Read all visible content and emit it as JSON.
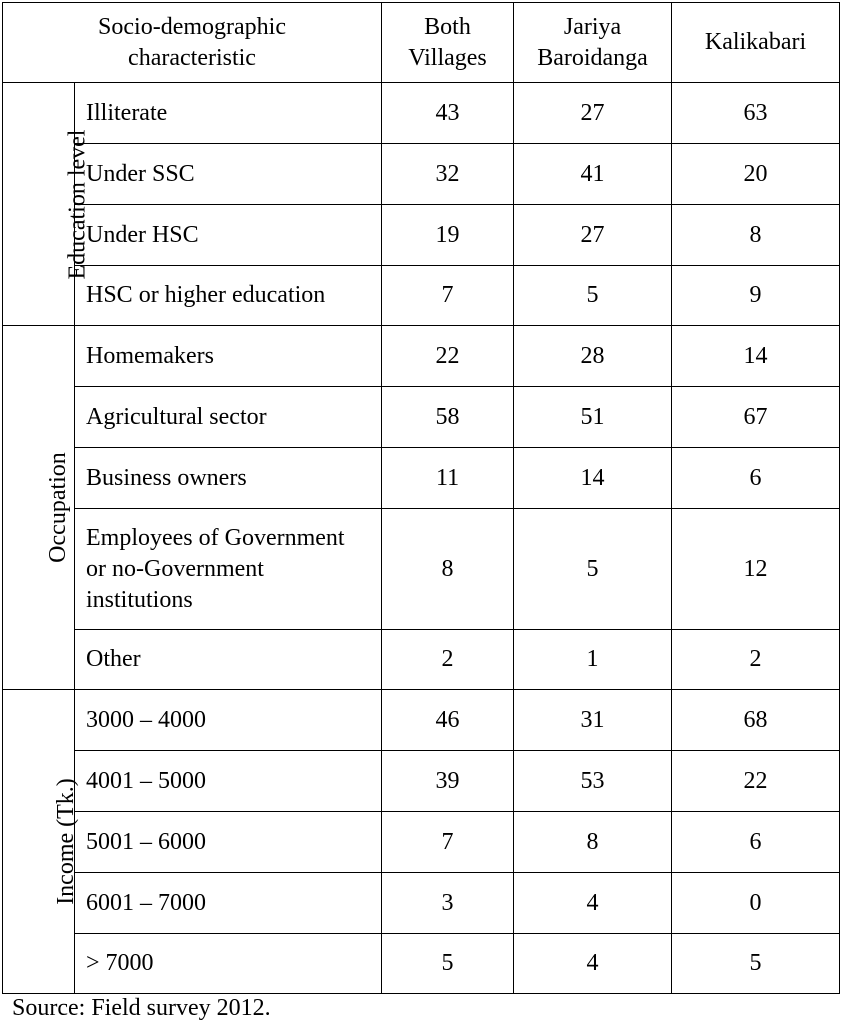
{
  "table": {
    "headers": {
      "characteristic": "Socio-demographic characteristic",
      "both": "Both Villages",
      "jariya": "Jariya Baroidanga",
      "kalikabari": "Kalikabari"
    },
    "groups": [
      {
        "name": "Education level",
        "rows": [
          {
            "label": "Illiterate",
            "both": "43",
            "jariya": "27",
            "kalikabari": "63"
          },
          {
            "label": "Under SSC",
            "both": "32",
            "jariya": "41",
            "kalikabari": "20"
          },
          {
            "label": "Under HSC",
            "both": "19",
            "jariya": "27",
            "kalikabari": "8"
          },
          {
            "label": "HSC or higher education",
            "both": "7",
            "jariya": "5",
            "kalikabari": "9"
          }
        ]
      },
      {
        "name": "Occupation",
        "rows": [
          {
            "label": "Homemakers",
            "both": "22",
            "jariya": "28",
            "kalikabari": "14"
          },
          {
            "label": "Agricultural sector",
            "both": "58",
            "jariya": "51",
            "kalikabari": "67"
          },
          {
            "label": "Business owners",
            "both": "11",
            "jariya": "14",
            "kalikabari": "6"
          },
          {
            "label": "Employees of Government or no-Government institutions",
            "both": "8",
            "jariya": "5",
            "kalikabari": "12"
          },
          {
            "label": "Other",
            "both": "2",
            "jariya": "1",
            "kalikabari": "2"
          }
        ]
      },
      {
        "name": "Income (Tk.)",
        "rows": [
          {
            "label": "3000 – 4000",
            "both": "46",
            "jariya": "31",
            "kalikabari": "68"
          },
          {
            "label": "4001 – 5000",
            "both": "39",
            "jariya": "53",
            "kalikabari": "22"
          },
          {
            "label": "5001 – 6000",
            "both": "7",
            "jariya": "8",
            "kalikabari": "6"
          },
          {
            "label": "6001 – 7000",
            "both": "3",
            "jariya": "4",
            "kalikabari": "0"
          },
          {
            "label": "> 7000",
            "both": "5",
            "jariya": "4",
            "kalikabari": "5"
          }
        ]
      }
    ]
  },
  "source": "Source: Field survey 2012."
}
